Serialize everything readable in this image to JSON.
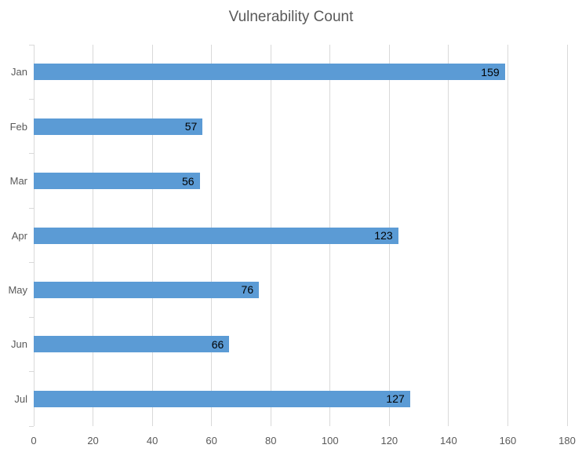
{
  "chart_data": {
    "type": "bar",
    "orientation": "horizontal",
    "title": "Vulnerability Count",
    "categories": [
      "Jan",
      "Feb",
      "Mar",
      "Apr",
      "May",
      "Jun",
      "Jul"
    ],
    "values": [
      159,
      57,
      56,
      123,
      76,
      66,
      127
    ],
    "xlabel": "",
    "ylabel": "",
    "xlim": [
      0,
      180
    ],
    "x_ticks": [
      0,
      20,
      40,
      60,
      80,
      100,
      120,
      140,
      160,
      180
    ],
    "grid": "vertical-only",
    "legend": "none",
    "data_labels": "inside-end",
    "colors": {
      "bar": "#5B9BD5",
      "gridline": "#D9D9D9",
      "axis_line": "#D9D9D9",
      "axis_text": "#595959",
      "title_text": "#595959",
      "data_label_text": "#000000",
      "background": "#FFFFFF"
    }
  }
}
